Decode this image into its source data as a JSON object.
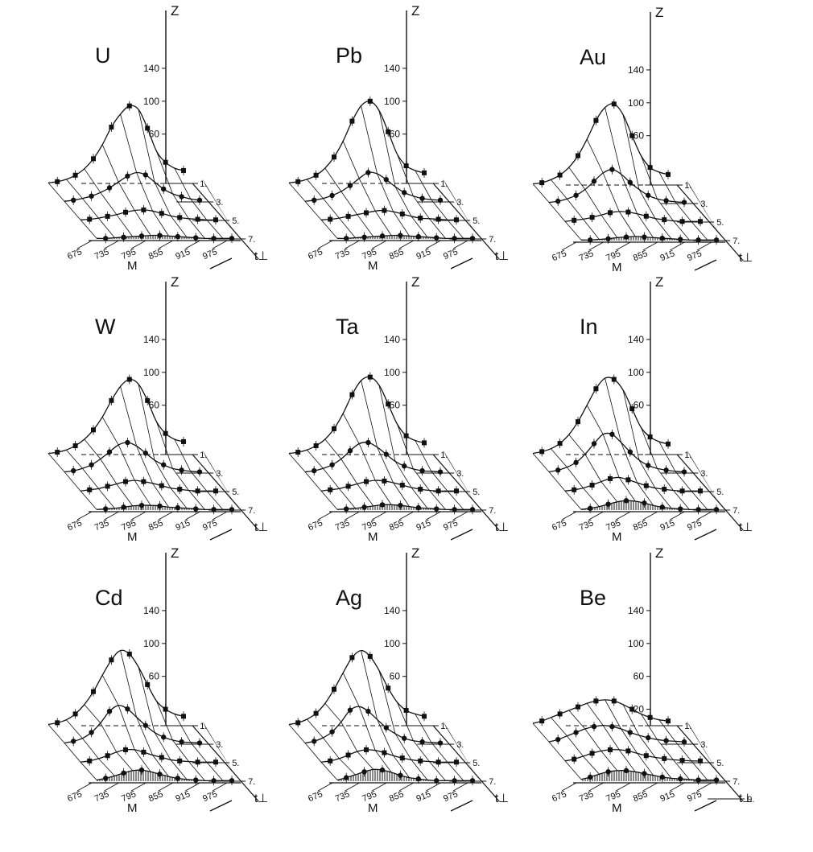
{
  "figure": {
    "colors": {
      "ink": "#111111",
      "background": "#ffffff"
    }
  },
  "chart_data": [
    {
      "type": "line",
      "title": "U",
      "zlabel": "Z",
      "xlabel": "M",
      "tlabel": "t⊥",
      "z_ticks": [
        "140",
        "100",
        "60"
      ],
      "m_ticks": [
        "675",
        "735",
        "795",
        "855",
        "915",
        "975"
      ],
      "t_ticks": [
        "1.",
        "3.",
        "5.",
        "7."
      ],
      "series": [
        {
          "values": [
            1,
            3,
            7,
            14,
            25,
            42,
            66,
            96,
            118,
            132,
            126,
            94,
            55,
            36,
            26,
            22
          ]
        },
        {
          "values": [
            1,
            3,
            6,
            10,
            16,
            24,
            34,
            44,
            50,
            46,
            34,
            22,
            14,
            9,
            5,
            3
          ]
        },
        {
          "values": [
            1,
            2,
            4,
            7,
            10,
            14,
            17,
            18,
            16,
            12,
            8,
            5,
            3,
            2,
            1,
            1
          ]
        },
        {
          "values": [
            1,
            1,
            2,
            3,
            4,
            5,
            6,
            6,
            5,
            4,
            3,
            2,
            1,
            1,
            1,
            1
          ]
        }
      ]
    },
    {
      "type": "line",
      "title": "Pb",
      "zlabel": "Z",
      "xlabel": "M",
      "tlabel": "t⊥",
      "z_ticks": [
        "140",
        "100",
        "60"
      ],
      "m_ticks": [
        "675",
        "735",
        "795",
        "855",
        "915",
        "975"
      ],
      "t_ticks": [
        "1.",
        "3.",
        "5.",
        "7."
      ],
      "series": [
        {
          "values": [
            1,
            3,
            7,
            14,
            26,
            45,
            72,
            106,
            132,
            140,
            124,
            88,
            50,
            30,
            22,
            18
          ]
        },
        {
          "values": [
            1,
            3,
            6,
            11,
            18,
            28,
            40,
            50,
            48,
            38,
            26,
            16,
            10,
            6,
            4,
            3
          ]
        },
        {
          "values": [
            1,
            2,
            4,
            7,
            10,
            13,
            16,
            17,
            15,
            11,
            7,
            4,
            3,
            2,
            1,
            1
          ]
        },
        {
          "values": [
            1,
            1,
            2,
            3,
            4,
            5,
            6,
            6,
            5,
            4,
            3,
            2,
            1,
            1,
            1,
            1
          ]
        }
      ]
    },
    {
      "type": "line",
      "title": "Au",
      "zlabel": "Z",
      "xlabel": "M",
      "tlabel": "t⊥",
      "z_ticks": [
        "140",
        "100",
        "60"
      ],
      "m_ticks": [
        "675",
        "735",
        "795",
        "855",
        "915",
        "975"
      ],
      "t_ticks": [
        "1.",
        "3.",
        "5.",
        "7."
      ],
      "series": [
        {
          "values": [
            2,
            4,
            9,
            17,
            30,
            50,
            78,
            110,
            132,
            138,
            120,
            84,
            50,
            30,
            22,
            18
          ]
        },
        {
          "values": [
            2,
            4,
            8,
            14,
            24,
            38,
            52,
            58,
            50,
            36,
            24,
            14,
            8,
            5,
            3,
            2
          ]
        },
        {
          "values": [
            1,
            3,
            5,
            8,
            12,
            16,
            18,
            17,
            14,
            10,
            6,
            4,
            2,
            1,
            1,
            1
          ]
        },
        {
          "values": [
            1,
            1,
            2,
            3,
            5,
            6,
            7,
            6,
            5,
            4,
            3,
            2,
            1,
            1,
            1,
            1
          ]
        }
      ]
    },
    {
      "type": "line",
      "title": "W",
      "zlabel": "Z",
      "xlabel": "M",
      "tlabel": "t⊥",
      "z_ticks": [
        "140",
        "100",
        "60"
      ],
      "m_ticks": [
        "675",
        "735",
        "795",
        "855",
        "915",
        "975"
      ],
      "t_ticks": [
        "1.",
        "3.",
        "5.",
        "7."
      ],
      "series": [
        {
          "values": [
            2,
            4,
            8,
            15,
            26,
            42,
            64,
            92,
            116,
            128,
            120,
            92,
            56,
            36,
            26,
            22
          ]
        },
        {
          "values": [
            2,
            4,
            8,
            14,
            24,
            36,
            48,
            52,
            46,
            34,
            22,
            14,
            8,
            5,
            3,
            2
          ]
        },
        {
          "values": [
            1,
            3,
            5,
            9,
            13,
            17,
            19,
            17,
            14,
            10,
            6,
            4,
            2,
            1,
            1,
            1
          ]
        },
        {
          "values": [
            1,
            2,
            3,
            5,
            7,
            8,
            8,
            7,
            5,
            4,
            3,
            2,
            1,
            1,
            1,
            1
          ]
        }
      ]
    },
    {
      "type": "line",
      "title": "Ta",
      "zlabel": "Z",
      "xlabel": "M",
      "tlabel": "t⊥",
      "z_ticks": [
        "140",
        "100",
        "60"
      ],
      "m_ticks": [
        "675",
        "735",
        "795",
        "855",
        "915",
        "975"
      ],
      "t_ticks": [
        "1.",
        "3.",
        "5.",
        "7."
      ],
      "series": [
        {
          "values": [
            2,
            4,
            8,
            15,
            26,
            44,
            70,
            102,
            126,
            132,
            118,
            86,
            52,
            32,
            24,
            20
          ]
        },
        {
          "values": [
            2,
            4,
            8,
            14,
            24,
            38,
            50,
            52,
            44,
            32,
            20,
            12,
            7,
            4,
            3,
            2
          ]
        },
        {
          "values": [
            1,
            3,
            5,
            9,
            13,
            17,
            19,
            18,
            15,
            11,
            7,
            4,
            2,
            1,
            1,
            1
          ]
        },
        {
          "values": [
            1,
            2,
            3,
            5,
            7,
            9,
            9,
            8,
            6,
            4,
            3,
            2,
            1,
            1,
            1,
            1
          ]
        }
      ]
    },
    {
      "type": "line",
      "title": "In",
      "zlabel": "Z",
      "xlabel": "M",
      "tlabel": "t⊥",
      "z_ticks": [
        "140",
        "100",
        "60"
      ],
      "m_ticks": [
        "675",
        "735",
        "795",
        "855",
        "915",
        "975"
      ],
      "t_ticks": [
        "1.",
        "3.",
        "5.",
        "7."
      ],
      "series": [
        {
          "values": [
            2,
            5,
            10,
            19,
            34,
            56,
            84,
            112,
            130,
            128,
            110,
            78,
            46,
            30,
            22,
            18
          ]
        },
        {
          "values": [
            2,
            5,
            10,
            18,
            32,
            50,
            66,
            66,
            52,
            36,
            22,
            13,
            8,
            5,
            3,
            2
          ]
        },
        {
          "values": [
            1,
            3,
            6,
            11,
            17,
            22,
            24,
            20,
            15,
            10,
            6,
            4,
            2,
            1,
            1,
            1
          ]
        },
        {
          "values": [
            1,
            3,
            6,
            10,
            14,
            16,
            15,
            12,
            8,
            5,
            3,
            2,
            1,
            1,
            1,
            1
          ]
        }
      ]
    },
    {
      "type": "line",
      "title": "Cd",
      "zlabel": "Z",
      "xlabel": "M",
      "tlabel": "t⊥",
      "z_ticks": [
        "140",
        "100",
        "60"
      ],
      "m_ticks": [
        "675",
        "735",
        "795",
        "855",
        "915",
        "975"
      ],
      "t_ticks": [
        "1.",
        "3.",
        "5.",
        "7."
      ],
      "series": [
        {
          "values": [
            2,
            5,
            10,
            20,
            36,
            58,
            86,
            112,
            128,
            122,
            100,
            70,
            42,
            28,
            20,
            16
          ]
        },
        {
          "values": [
            2,
            5,
            10,
            20,
            36,
            56,
            66,
            60,
            46,
            32,
            20,
            12,
            7,
            4,
            3,
            2
          ]
        },
        {
          "values": [
            1,
            3,
            7,
            12,
            18,
            22,
            22,
            18,
            13,
            9,
            5,
            3,
            2,
            1,
            1,
            1
          ]
        },
        {
          "values": [
            2,
            5,
            9,
            14,
            18,
            19,
            16,
            12,
            8,
            5,
            3,
            2,
            1,
            1,
            1,
            1
          ]
        }
      ]
    },
    {
      "type": "line",
      "title": "Ag",
      "zlabel": "Z",
      "xlabel": "M",
      "tlabel": "t⊥",
      "z_ticks": [
        "140",
        "100",
        "60"
      ],
      "m_ticks": [
        "675",
        "735",
        "795",
        "855",
        "915",
        "975"
      ],
      "t_ticks": [
        "1.",
        "3.",
        "5.",
        "7."
      ],
      "series": [
        {
          "values": [
            2,
            5,
            11,
            21,
            38,
            62,
            90,
            116,
            128,
            118,
            94,
            64,
            40,
            26,
            20,
            16
          ]
        },
        {
          "values": [
            2,
            5,
            11,
            21,
            38,
            58,
            64,
            56,
            42,
            28,
            18,
            10,
            6,
            4,
            3,
            2
          ]
        },
        {
          "values": [
            1,
            3,
            7,
            13,
            19,
            22,
            21,
            17,
            12,
            8,
            5,
            3,
            2,
            1,
            1,
            1
          ]
        },
        {
          "values": [
            2,
            6,
            11,
            16,
            20,
            19,
            15,
            10,
            6,
            4,
            2,
            1,
            1,
            1,
            1,
            1
          ]
        }
      ]
    },
    {
      "type": "line",
      "title": "Be",
      "zlabel": "Z",
      "xlabel": "M",
      "tlabel": "t⊥",
      "z_ticks": [
        "140",
        "100",
        "60",
        "20"
      ],
      "m_ticks": [
        "675",
        "735",
        "795",
        "855",
        "915",
        "975"
      ],
      "t_ticks": [
        "1.",
        "3.",
        "5.",
        "7.",
        "9."
      ],
      "series": [
        {
          "values": [
            4,
            8,
            14,
            20,
            26,
            32,
            38,
            42,
            44,
            42,
            36,
            28,
            20,
            14,
            10,
            8
          ]
        },
        {
          "values": [
            4,
            8,
            14,
            20,
            26,
            30,
            32,
            30,
            26,
            20,
            15,
            11,
            8,
            6,
            5,
            4
          ]
        },
        {
          "values": [
            3,
            6,
            11,
            16,
            20,
            22,
            22,
            20,
            16,
            12,
            9,
            7,
            5,
            4,
            3,
            3
          ]
        },
        {
          "values": [
            3,
            7,
            12,
            16,
            18,
            18,
            16,
            13,
            10,
            7,
            5,
            4,
            3,
            2,
            2,
            2
          ]
        }
      ]
    }
  ]
}
